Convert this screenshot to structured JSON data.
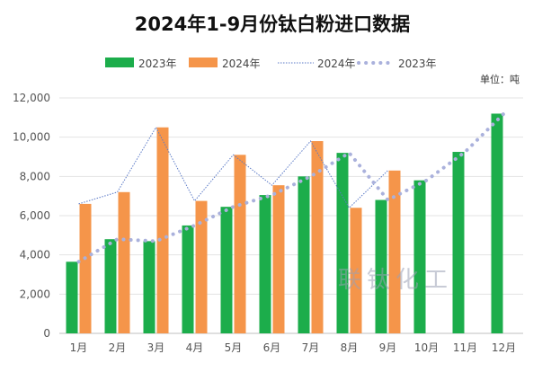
{
  "chart_data": {
    "type": "bar",
    "title": "2024年1-9月份钛白粉进口数据",
    "unit_label": "单位：吨",
    "watermark": "联钛化工",
    "categories": [
      "1月",
      "2月",
      "3月",
      "4月",
      "5月",
      "6月",
      "7月",
      "8月",
      "9月",
      "10月",
      "11月",
      "12月"
    ],
    "ylim": [
      0,
      12000
    ],
    "yticks": [
      "0",
      "2,000",
      "4,000",
      "6,000",
      "8,000",
      "10,000",
      "12,000"
    ],
    "series": [
      {
        "name": "2023年",
        "kind": "bar",
        "color": "#1cad4b",
        "values": [
          3650,
          4800,
          4700,
          5500,
          6450,
          7050,
          8000,
          9200,
          6800,
          7800,
          9250,
          11200
        ]
      },
      {
        "name": "2024年",
        "kind": "bar",
        "color": "#f5954a",
        "values": [
          6600,
          7200,
          10500,
          6750,
          9100,
          7550,
          9800,
          6400,
          8300,
          null,
          null,
          null
        ]
      },
      {
        "name": "2024年",
        "kind": "line",
        "color": "#5b7ac7",
        "values": [
          6600,
          7200,
          10500,
          6750,
          9100,
          7550,
          9800,
          6400,
          8300,
          null,
          null,
          null
        ]
      },
      {
        "name": "2023年",
        "kind": "dotted-line",
        "color": "#aab1dc",
        "values": [
          3650,
          4800,
          4700,
          5500,
          6450,
          7050,
          8000,
          9200,
          6800,
          7800,
          9250,
          11200
        ]
      }
    ],
    "grid": true,
    "legend_position": "top"
  }
}
